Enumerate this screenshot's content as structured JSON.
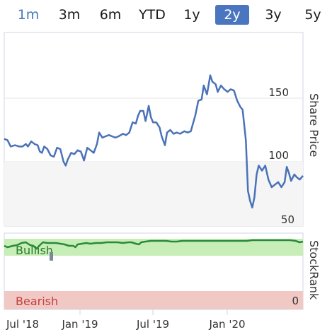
{
  "tabs": [
    {
      "label": "1m",
      "active": false
    },
    {
      "label": "3m",
      "active": false
    },
    {
      "label": "6m",
      "active": false
    },
    {
      "label": "YTD",
      "active": false
    },
    {
      "label": "1y",
      "active": false
    },
    {
      "label": "2y",
      "active": true
    },
    {
      "label": "3y",
      "active": false
    },
    {
      "label": "5y",
      "active": false
    }
  ],
  "colors": {
    "price_line": "#4a72b8",
    "stockrank_line": "#2a8a3a",
    "bullish_band": "#c8eeb8",
    "bearish_band": "#f2c8c4",
    "active_tab": "#4a76c0"
  },
  "chart_data": [
    {
      "type": "line",
      "ylabel": "Share Price",
      "y_ticks": [
        "150",
        "100",
        "50"
      ],
      "ylim": [
        60,
        175
      ],
      "x_ticks": [
        "Jul '18",
        "Jan '19",
        "Jul '19",
        "Jan '20"
      ],
      "series": [
        {
          "values": [
            [
              0,
              118
            ],
            [
              3,
              117
            ],
            [
              6,
              112
            ],
            [
              10,
              113
            ],
            [
              14,
              112
            ],
            [
              17,
              112
            ],
            [
              20,
              114
            ],
            [
              22,
              112
            ],
            [
              25,
              116
            ],
            [
              28,
              114
            ],
            [
              31,
              113
            ],
            [
              33,
              108
            ],
            [
              35,
              107
            ],
            [
              37,
              112
            ],
            [
              40,
              110
            ],
            [
              43,
              105
            ],
            [
              46,
              104
            ],
            [
              49,
              111
            ],
            [
              52,
              110
            ],
            [
              55,
              100
            ],
            [
              57,
              97
            ],
            [
              59,
              102
            ],
            [
              62,
              107
            ],
            [
              65,
              106
            ],
            [
              68,
              109
            ],
            [
              71,
              108
            ],
            [
              74,
              101
            ],
            [
              77,
              111
            ],
            [
              80,
              109
            ],
            [
              83,
              107
            ],
            [
              86,
              114
            ],
            [
              88,
              123
            ],
            [
              91,
              119
            ],
            [
              94,
              120
            ],
            [
              97,
              121
            ],
            [
              100,
              120
            ],
            [
              103,
              119
            ],
            [
              106,
              120
            ],
            [
              110,
              122
            ],
            [
              113,
              121
            ],
            [
              116,
              123
            ],
            [
              119,
              131
            ],
            [
              122,
              130
            ],
            [
              124,
              136
            ],
            [
              126,
              140
            ],
            [
              129,
              140
            ],
            [
              131,
              132
            ],
            [
              134,
              144
            ],
            [
              136,
              135
            ],
            [
              138,
              131
            ],
            [
              141,
              131
            ],
            [
              144,
              127
            ],
            [
              146,
              120
            ],
            [
              149,
              113
            ],
            [
              151,
              123
            ],
            [
              154,
              125
            ],
            [
              157,
              122
            ],
            [
              160,
              123
            ],
            [
              163,
              122
            ],
            [
              167,
              124
            ],
            [
              170,
              123
            ],
            [
              173,
              124
            ],
            [
              175,
              130
            ],
            [
              177,
              136
            ],
            [
              180,
              148
            ],
            [
              183,
              149
            ],
            [
              185,
              160
            ],
            [
              188,
              153
            ],
            [
              191,
              168
            ],
            [
              193,
              163
            ],
            [
              196,
              161
            ],
            [
              198,
              155
            ],
            [
              201,
              160
            ],
            [
              204,
              157
            ],
            [
              207,
              155
            ],
            [
              210,
              157
            ],
            [
              213,
              156
            ],
            [
              216,
              148
            ],
            [
              219,
              143
            ],
            [
              221,
              141
            ],
            [
              224,
              117
            ],
            [
              226,
              77
            ],
            [
              228,
              69
            ],
            [
              230,
              64
            ],
            [
              232,
              72
            ],
            [
              234,
              90
            ],
            [
              236,
              97
            ],
            [
              239,
              93
            ],
            [
              242,
              97
            ],
            [
              245,
              86
            ],
            [
              248,
              80
            ],
            [
              251,
              82
            ],
            [
              254,
              84
            ],
            [
              257,
              80
            ],
            [
              260,
              84
            ],
            [
              262,
              96
            ],
            [
              264,
              91
            ],
            [
              266,
              85
            ],
            [
              269,
              90
            ],
            [
              271,
              88
            ],
            [
              274,
              86
            ],
            [
              277,
              89
            ]
          ]
        }
      ]
    },
    {
      "type": "line",
      "ylabel": "StockRank",
      "y_ticks": [
        "0"
      ],
      "bands": [
        "Bullish",
        "Bearish"
      ],
      "ylim": [
        0,
        100
      ],
      "series": [
        {
          "values": [
            [
              0,
              90
            ],
            [
              3,
              88
            ],
            [
              8,
              90
            ],
            [
              12,
              91
            ],
            [
              16,
              94
            ],
            [
              20,
              95
            ],
            [
              24,
              91
            ],
            [
              27,
              90
            ],
            [
              30,
              86
            ],
            [
              33,
              91
            ],
            [
              36,
              95
            ],
            [
              40,
              94
            ],
            [
              44,
              94
            ],
            [
              48,
              94
            ],
            [
              52,
              93
            ],
            [
              56,
              92
            ],
            [
              60,
              90
            ],
            [
              64,
              90
            ],
            [
              66,
              88
            ],
            [
              68,
              92
            ],
            [
              72,
              93
            ],
            [
              76,
              94
            ],
            [
              80,
              93
            ],
            [
              85,
              94
            ],
            [
              90,
              94
            ],
            [
              95,
              95
            ],
            [
              100,
              95
            ],
            [
              105,
              95
            ],
            [
              110,
              94
            ],
            [
              115,
              95
            ],
            [
              118,
              95
            ],
            [
              122,
              93
            ],
            [
              125,
              92
            ],
            [
              127,
              95
            ],
            [
              131,
              96
            ],
            [
              136,
              97
            ],
            [
              140,
              97
            ],
            [
              145,
              97
            ],
            [
              150,
              97
            ],
            [
              155,
              96
            ],
            [
              160,
              96
            ],
            [
              165,
              97
            ],
            [
              170,
              97
            ],
            [
              175,
              97
            ],
            [
              180,
              97
            ],
            [
              185,
              97
            ],
            [
              190,
              97
            ],
            [
              195,
              97
            ],
            [
              200,
              97
            ],
            [
              205,
              97
            ],
            [
              210,
              97
            ],
            [
              215,
              97
            ],
            [
              220,
              97
            ],
            [
              225,
              97
            ],
            [
              230,
              98
            ],
            [
              235,
              98
            ],
            [
              240,
              98
            ],
            [
              245,
              98
            ],
            [
              250,
              98
            ],
            [
              255,
              98
            ],
            [
              260,
              98
            ],
            [
              265,
              98
            ],
            [
              270,
              97
            ],
            [
              274,
              95
            ],
            [
              277,
              96
            ]
          ]
        }
      ]
    }
  ]
}
